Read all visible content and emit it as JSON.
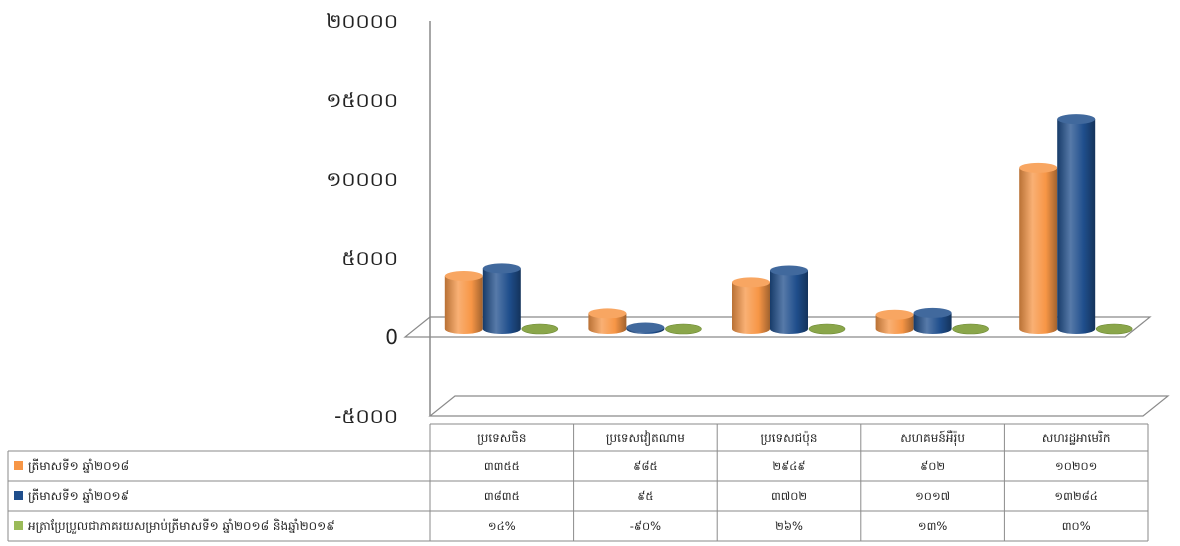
{
  "chart_data": {
    "type": "bar",
    "style": "3d-cylinder",
    "categories": [
      "ប្រទេសចិន",
      "ប្រទេសវៀតណាម",
      "ប្រទេសជប៉ុន",
      "សហគមន៍អឺរ៉ុប",
      "សហរដ្ឋអាមេរិក"
    ],
    "series": [
      {
        "name": "ត្រីមាសទី១ ឆ្នាំ២០១៨",
        "color": "#f79646",
        "values": [
          3355,
          985,
          2949,
          902,
          10201
        ],
        "labels": [
          "៣៣៥៥",
          "៩៨៥",
          "២៩៤៩",
          "៩០២",
          "១០២០១"
        ]
      },
      {
        "name": "ត្រីមាសទី១ ឆ្នាំ២០១៩",
        "color": "#1f4e8c",
        "values": [
          3835,
          95,
          3702,
          1017,
          13284
        ],
        "labels": [
          "៣៨៣៥",
          "៩៥",
          "៣៧០២",
          "១០១៧",
          "១៣២៨៤"
        ]
      },
      {
        "name": "អត្រាប្រែប្រួលជាភាគរយសម្រាប់ត្រីមាសទី១ ឆ្នាំ២០១៨ និងឆ្នាំ២០១៩",
        "color": "#9bbb59",
        "values": [
          14,
          -90,
          26,
          13,
          30
        ],
        "labels": [
          "១៤%",
          "-៩០%",
          "២៦%",
          "១៣%",
          "៣០%"
        ]
      }
    ],
    "yticks": [
      {
        "value": -5000,
        "label": "-៥០០០"
      },
      {
        "value": 0,
        "label": "0"
      },
      {
        "value": 5000,
        "label": "៥០០០"
      },
      {
        "value": 10000,
        "label": "១០០០០"
      },
      {
        "value": 15000,
        "label": "១៥០០០"
      },
      {
        "value": 20000,
        "label": "២០០០០"
      }
    ],
    "ylim": [
      -5000,
      20000
    ],
    "legend": "data-table"
  }
}
